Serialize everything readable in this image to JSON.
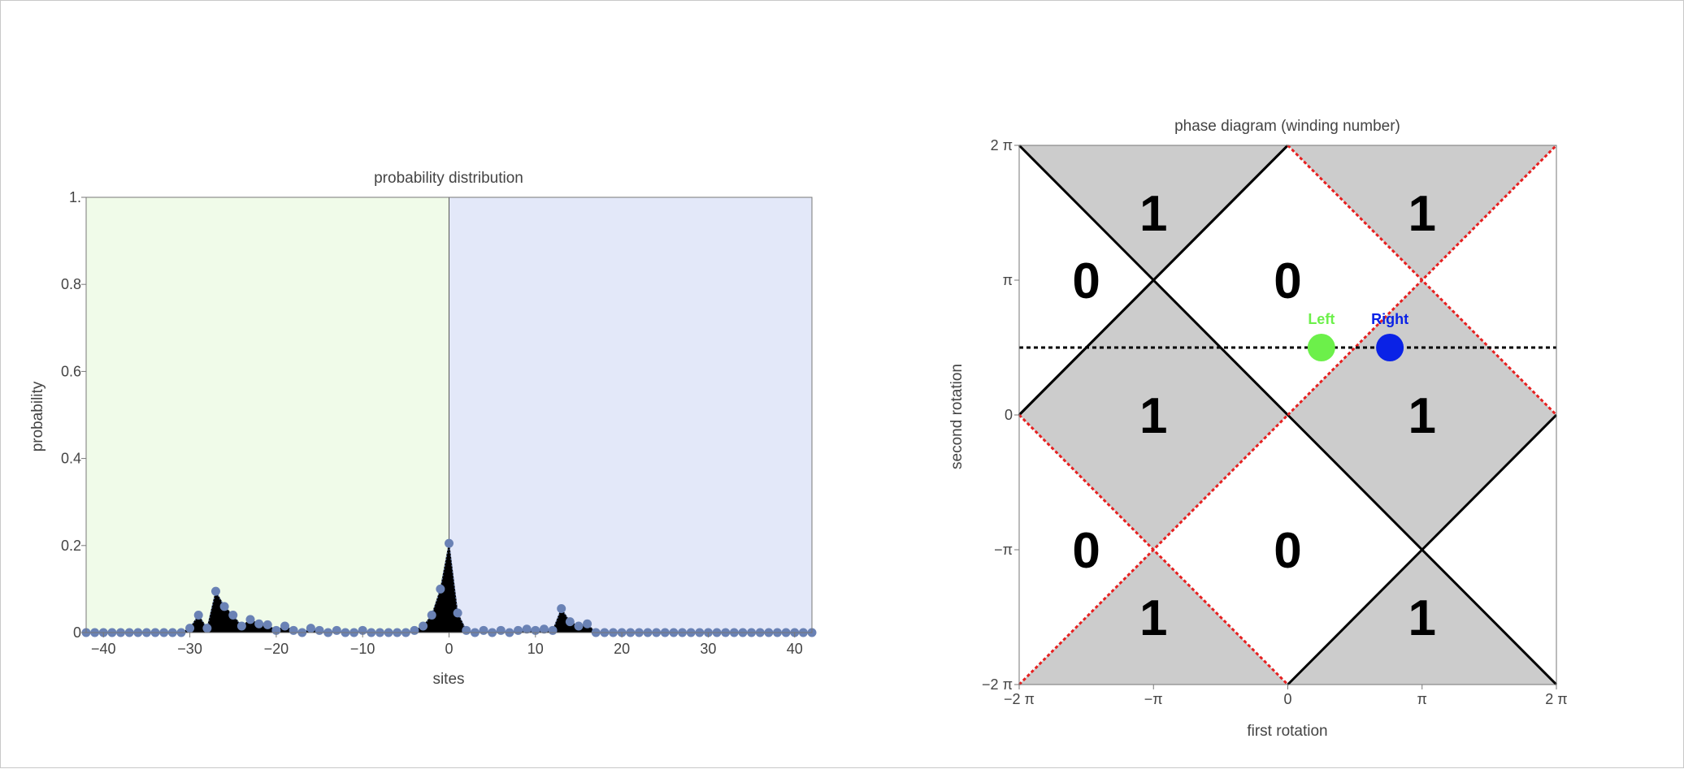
{
  "chart_data": [
    {
      "type": "area",
      "title": "probability distribution",
      "xlabel": "sites",
      "ylabel": "probability",
      "xlim": [
        -42,
        42
      ],
      "ylim": [
        0,
        1
      ],
      "x_ticks": [
        -40,
        -30,
        -20,
        -10,
        0,
        10,
        20,
        30,
        40
      ],
      "x_tick_labels": [
        "−40",
        "−30",
        "−20",
        "−10",
        "0",
        "10",
        "20",
        "30",
        "40"
      ],
      "y_ticks": [
        0,
        0.2,
        0.4,
        0.6,
        0.8,
        1
      ],
      "y_tick_labels": [
        "0",
        "0.2",
        "0.4",
        "0.6",
        "0.8",
        "1."
      ],
      "background_regions": [
        {
          "from": -42,
          "to": 0,
          "color": "#f0fbe9"
        },
        {
          "from": 0,
          "to": 42,
          "color": "#e3e8f9"
        }
      ],
      "series": [
        {
          "marker_color": "#6a82b5",
          "fill_color": "#000000",
          "x": [
            -42,
            -41,
            -40,
            -39,
            -38,
            -37,
            -36,
            -35,
            -34,
            -33,
            -32,
            -31,
            -30,
            -29,
            -28,
            -27,
            -26,
            -25,
            -24,
            -23,
            -22,
            -21,
            -20,
            -19,
            -18,
            -17,
            -16,
            -15,
            -14,
            -13,
            -12,
            -11,
            -10,
            -9,
            -8,
            -7,
            -6,
            -5,
            -4,
            -3,
            -2,
            -1,
            0,
            1,
            2,
            3,
            4,
            5,
            6,
            7,
            8,
            9,
            10,
            11,
            12,
            13,
            14,
            15,
            16,
            17,
            18,
            19,
            20,
            21,
            22,
            23,
            24,
            25,
            26,
            27,
            28,
            29,
            30,
            31,
            32,
            33,
            34,
            35,
            36,
            37,
            38,
            39,
            40,
            41,
            42
          ],
          "y": [
            0,
            0,
            0,
            0,
            0,
            0,
            0,
            0,
            0,
            0,
            0,
            0,
            0.01,
            0.04,
            0.01,
            0.095,
            0.06,
            0.04,
            0.015,
            0.03,
            0.02,
            0.018,
            0.005,
            0.015,
            0.005,
            0,
            0.01,
            0.005,
            0,
            0.005,
            0,
            0,
            0.005,
            0,
            0,
            0,
            0,
            0,
            0.005,
            0.015,
            0.04,
            0.1,
            0.205,
            0.045,
            0.005,
            0,
            0.005,
            0,
            0.005,
            0,
            0.005,
            0.008,
            0.005,
            0.008,
            0.005,
            0.055,
            0.025,
            0.015,
            0.02,
            0,
            0,
            0,
            0,
            0,
            0,
            0,
            0,
            0,
            0,
            0,
            0,
            0,
            0,
            0,
            0,
            0,
            0,
            0,
            0,
            0,
            0,
            0,
            0,
            0,
            0
          ]
        }
      ]
    },
    {
      "type": "heatmap",
      "title": "phase diagram (winding number)",
      "xlabel": "first rotation",
      "ylabel": "second rotation",
      "xlim_over_pi": [
        -2,
        2
      ],
      "ylim_over_pi": [
        -2,
        2
      ],
      "x_ticks_over_pi": [
        -2,
        -1,
        0,
        1,
        2
      ],
      "x_tick_labels": [
        "−2 π",
        "−π",
        "0",
        "π",
        "2 π"
      ],
      "y_ticks_over_pi": [
        -2,
        -1,
        0,
        1,
        2
      ],
      "y_tick_labels": [
        "−2 π",
        "−π",
        "0",
        "π",
        "2 π"
      ],
      "shaded_color": "#cccccc",
      "shaded_diamonds_over_pi": [
        [
          -1,
          0
        ],
        [
          1,
          0
        ]
      ],
      "shaded_top_triangles_over_pi": [
        -1,
        1
      ],
      "shaded_bottom_triangles_over_pi": [
        -1,
        1
      ],
      "region_labels": [
        {
          "text": "1",
          "x_over_pi": -1,
          "y_over_pi": 1.5
        },
        {
          "text": "1",
          "x_over_pi": 1,
          "y_over_pi": 1.5
        },
        {
          "text": "0",
          "x_over_pi": -1.5,
          "y_over_pi": 1
        },
        {
          "text": "0",
          "x_over_pi": 0,
          "y_over_pi": 1
        },
        {
          "text": "1",
          "x_over_pi": -1,
          "y_over_pi": 0
        },
        {
          "text": "1",
          "x_over_pi": 1,
          "y_over_pi": 0
        },
        {
          "text": "0",
          "x_over_pi": -1.5,
          "y_over_pi": -1
        },
        {
          "text": "0",
          "x_over_pi": 0,
          "y_over_pi": -1
        },
        {
          "text": "1",
          "x_over_pi": -1,
          "y_over_pi": -1.5
        },
        {
          "text": "1",
          "x_over_pi": 1,
          "y_over_pi": -1.5
        }
      ],
      "solid_lines_over_pi": [
        [
          [
            -2,
            2
          ],
          [
            0,
            0
          ]
        ],
        [
          [
            0,
            2
          ],
          [
            -2,
            0
          ]
        ],
        [
          [
            -2,
            0
          ],
          [
            -1,
            1
          ]
        ],
        [
          [
            -1,
            1
          ],
          [
            0,
            2
          ]
        ],
        [
          [
            0,
            0
          ],
          [
            2,
            -2
          ]
        ],
        [
          [
            0,
            -2
          ],
          [
            1,
            -1
          ]
        ],
        [
          [
            1,
            -1
          ],
          [
            2,
            0
          ]
        ]
      ],
      "dotted_red_lines_over_pi": [
        [
          [
            0,
            2
          ],
          [
            2,
            0
          ]
        ],
        [
          [
            0,
            0
          ],
          [
            2,
            2
          ]
        ],
        [
          [
            -2,
            -2
          ],
          [
            0,
            0
          ]
        ],
        [
          [
            -2,
            0
          ],
          [
            0,
            -2
          ]
        ]
      ],
      "dashed_line_y_over_pi": 0.5,
      "points": [
        {
          "name": "Left",
          "x_over_pi": 0.25,
          "y_over_pi": 0.5,
          "color": "#6cf04a"
        },
        {
          "name": "Right",
          "x_over_pi": 0.76,
          "y_over_pi": 0.5,
          "color": "#0a22e6"
        }
      ]
    }
  ]
}
